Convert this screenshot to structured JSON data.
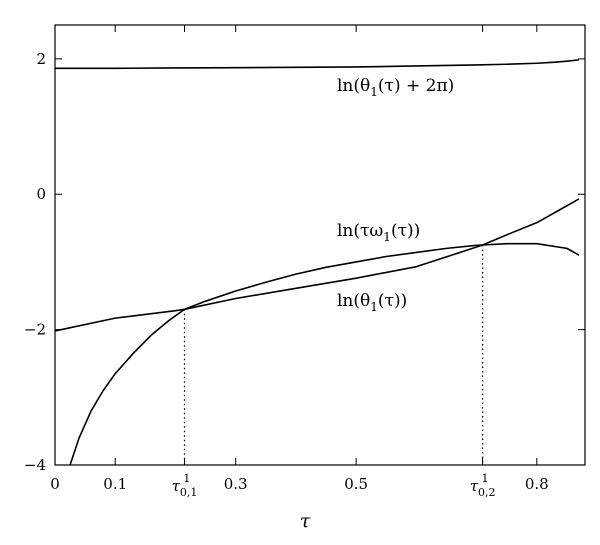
{
  "chart_data": {
    "type": "line",
    "title": "",
    "xlabel": "τ",
    "ylabel": "",
    "xlim": [
      0,
      0.88
    ],
    "ylim": [
      -4,
      2.5
    ],
    "grid": false,
    "legend": "none",
    "xticks": [
      {
        "value": 0,
        "label": "0"
      },
      {
        "value": 0.1,
        "label": "0.1"
      },
      {
        "value": 0.3,
        "label": "0.3"
      },
      {
        "value": 0.5,
        "label": "0.5"
      },
      {
        "value": 0.8,
        "label": "0.8"
      }
    ],
    "special_xticks": [
      {
        "value": 0.215,
        "base": "τ",
        "sup": "1",
        "sub": "0,1"
      },
      {
        "value": 0.71,
        "base": "τ",
        "sup": "1",
        "sub": "0,2"
      }
    ],
    "yticks": [
      {
        "value": -4,
        "label": "−4"
      },
      {
        "value": -2,
        "label": "−2"
      },
      {
        "value": 0,
        "label": "0"
      },
      {
        "value": 2,
        "label": "2"
      }
    ],
    "series": [
      {
        "name": "ln(θ1(τ) + 2π)",
        "x": [
          0,
          0.1,
          0.2,
          0.3,
          0.4,
          0.5,
          0.6,
          0.7,
          0.75,
          0.8,
          0.83,
          0.85,
          0.87
        ],
        "y": [
          1.86,
          1.86,
          1.865,
          1.87,
          1.875,
          1.88,
          1.895,
          1.91,
          1.92,
          1.935,
          1.95,
          1.965,
          1.985
        ]
      },
      {
        "name": "ln(τω1(τ))",
        "x": [
          0.025,
          0.04,
          0.06,
          0.08,
          0.1,
          0.13,
          0.16,
          0.19,
          0.215,
          0.25,
          0.3,
          0.35,
          0.4,
          0.45,
          0.5,
          0.55,
          0.6,
          0.65,
          0.7,
          0.71,
          0.75,
          0.8,
          0.85,
          0.87
        ],
        "y": [
          -4.0,
          -3.6,
          -3.2,
          -2.9,
          -2.65,
          -2.35,
          -2.08,
          -1.86,
          -1.7,
          -1.58,
          -1.43,
          -1.3,
          -1.18,
          -1.08,
          -1.0,
          -0.92,
          -0.86,
          -0.8,
          -0.755,
          -0.75,
          -0.73,
          -0.73,
          -0.8,
          -0.9
        ]
      },
      {
        "name": "ln(θ1(τ))",
        "x": [
          0,
          0.1,
          0.2,
          0.215,
          0.3,
          0.4,
          0.5,
          0.6,
          0.7,
          0.71,
          0.75,
          0.8,
          0.84,
          0.87
        ],
        "y": [
          -2.02,
          -1.83,
          -1.72,
          -1.7,
          -1.54,
          -1.39,
          -1.24,
          -1.07,
          -0.78,
          -0.75,
          -0.6,
          -0.42,
          -0.22,
          -0.07
        ]
      }
    ],
    "annotations": [
      {
        "text": "ln(θ1(τ) + 2π)",
        "base": "ln(θ",
        "sub": "1",
        "tail": "(τ) + 2π)"
      },
      {
        "text": "ln(τω1(τ))",
        "base": "ln(τω",
        "sub": "1",
        "tail": "(τ))"
      },
      {
        "text": "ln(θ1(τ))",
        "base": "ln(θ",
        "sub": "1",
        "tail": "(τ))"
      }
    ],
    "intersections": [
      {
        "x": 0.215,
        "y": -1.7
      },
      {
        "x": 0.71,
        "y": -0.75
      }
    ]
  }
}
